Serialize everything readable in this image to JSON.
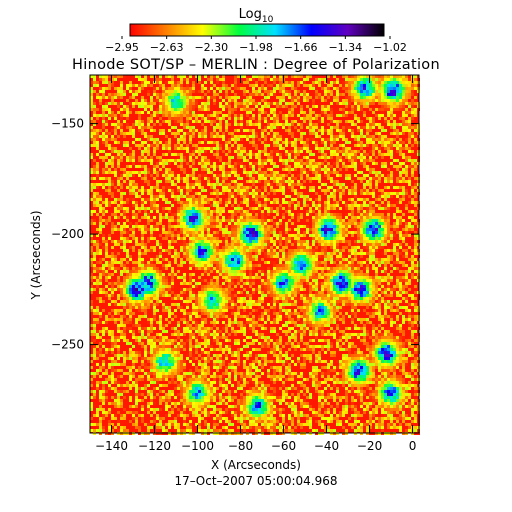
{
  "figure": {
    "title": "Hinode SOT/SP – MERLIN : Degree of Polarization",
    "timestamp": "17–Oct–2007 05:00:04.968",
    "colorbar": {
      "label_main": "Log",
      "label_sub": "10",
      "tick_labels": [
        "−2.95",
        "−2.63",
        "−2.30",
        "−1.98",
        "−1.66",
        "−1.34",
        "−1.02"
      ],
      "colors": [
        "#ff0000",
        "#ff8000",
        "#ffff00",
        "#00ff40",
        "#00e0ff",
        "#0000ff",
        "#6000c0",
        "#000000"
      ]
    }
  },
  "chart_data": {
    "type": "heatmap",
    "title": "Hinode SOT/SP – MERLIN : Degree of Polarization",
    "xlabel": "X (Arcseconds)",
    "ylabel": "Y (Arcseconds)",
    "xlim": [
      -150,
      3
    ],
    "ylim": [
      -290,
      -128
    ],
    "x_ticks": [
      -140,
      -120,
      -100,
      -80,
      -60,
      -40,
      -20,
      0
    ],
    "x_tick_labels": [
      "−140",
      "−120",
      "−100",
      "−80",
      "−60",
      "−40",
      "−20",
      "0"
    ],
    "y_ticks": [
      -150,
      -200,
      -250
    ],
    "y_tick_labels": [
      "−150",
      "−200",
      "−250"
    ],
    "colorbar_range": [
      -2.95,
      -1.02
    ],
    "colorbar_scale": "log10",
    "background_level": -2.9,
    "high_polarization_patches": [
      {
        "x": -128,
        "y": -225,
        "value": -1.3
      },
      {
        "x": -123,
        "y": -222,
        "value": -1.4
      },
      {
        "x": -102,
        "y": -193,
        "value": -1.4
      },
      {
        "x": -98,
        "y": -208,
        "value": -1.5
      },
      {
        "x": -75,
        "y": -200,
        "value": -1.3
      },
      {
        "x": -83,
        "y": -212,
        "value": -1.5
      },
      {
        "x": -60,
        "y": -222,
        "value": -1.6
      },
      {
        "x": -52,
        "y": -214,
        "value": -1.5
      },
      {
        "x": -39,
        "y": -198,
        "value": -1.3
      },
      {
        "x": -33,
        "y": -222,
        "value": -1.3
      },
      {
        "x": -24,
        "y": -225,
        "value": -1.4
      },
      {
        "x": -18,
        "y": -198,
        "value": -1.4
      },
      {
        "x": -12,
        "y": -254,
        "value": -1.3
      },
      {
        "x": -25,
        "y": -262,
        "value": -1.4
      },
      {
        "x": -10,
        "y": -272,
        "value": -1.5
      },
      {
        "x": -9,
        "y": -135,
        "value": -1.3
      },
      {
        "x": -22,
        "y": -134,
        "value": -1.5
      },
      {
        "x": -72,
        "y": -278,
        "value": -1.6
      },
      {
        "x": -100,
        "y": -272,
        "value": -1.7
      },
      {
        "x": -115,
        "y": -258,
        "value": -1.7
      },
      {
        "x": -43,
        "y": -235,
        "value": -1.7
      },
      {
        "x": -110,
        "y": -140,
        "value": -1.8
      },
      {
        "x": -93,
        "y": -230,
        "value": -1.7
      }
    ]
  }
}
